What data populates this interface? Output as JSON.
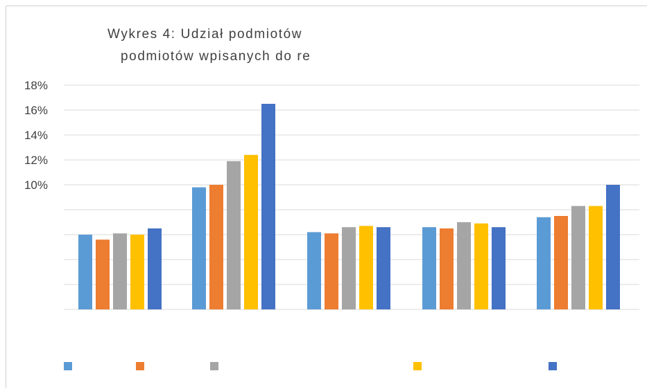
{
  "chart_data": {
    "type": "bar",
    "title_lines": [
      "Wykres 4: Udział podmiotów",
      "podmiotów wpisanych do re"
    ],
    "ytick_labels": [
      "18%",
      "16%",
      "14%",
      "12%",
      "10%"
    ],
    "ytick_values": [
      18,
      16,
      14,
      12,
      10
    ],
    "ylim": [
      0,
      18
    ],
    "grid": true,
    "legend_position": "bottom",
    "categories": [
      "",
      "",
      "",
      "",
      ""
    ],
    "series": [
      {
        "color": "#5B9BD5",
        "values": [
          6.0,
          9.8,
          6.2,
          6.6,
          7.4
        ]
      },
      {
        "color": "#ED7D31",
        "values": [
          5.6,
          10.0,
          6.1,
          6.5,
          7.5
        ]
      },
      {
        "color": "#A5A5A5",
        "values": [
          6.1,
          11.9,
          6.6,
          7.0,
          8.3
        ]
      },
      {
        "color": "#FFC000",
        "values": [
          6.0,
          12.4,
          6.7,
          6.9,
          8.3
        ]
      },
      {
        "color": "#4472C4",
        "values": [
          6.5,
          16.5,
          6.6,
          6.6,
          10.0
        ]
      }
    ]
  }
}
